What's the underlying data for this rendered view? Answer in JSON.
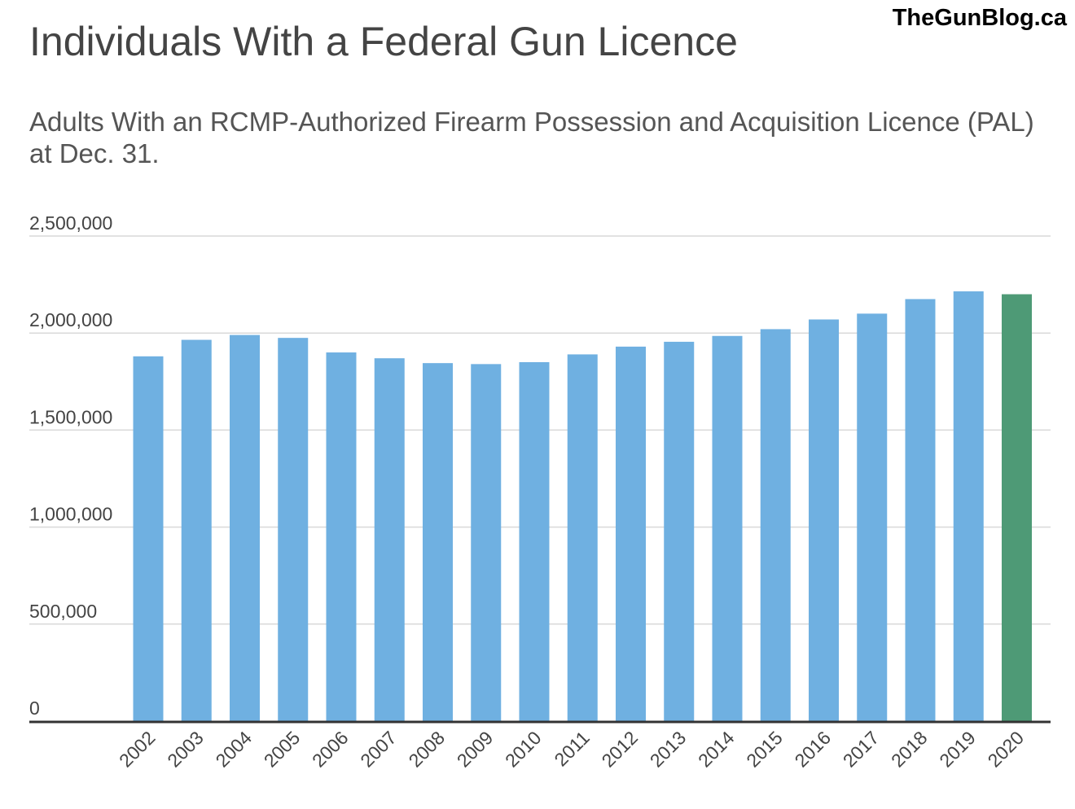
{
  "header": {
    "title": "Individuals With a Federal Gun Licence",
    "brand": "TheGunBlog.ca"
  },
  "chart_data": {
    "type": "bar",
    "title": "Individuals With a Federal Gun Licence",
    "subtitle": "Adults With an RCMP-Authorized Firearm Possession and Acquisition Licence (PAL) at Dec. 31.",
    "xlabel": "",
    "ylabel": "",
    "ylim": [
      0,
      2500000
    ],
    "y_ticks": [
      0,
      500000,
      1000000,
      1500000,
      2000000,
      2500000
    ],
    "y_tick_labels": [
      "0",
      "500,000",
      "1,000,000",
      "1,500,000",
      "2,000,000",
      "2,500,000"
    ],
    "grid": true,
    "categories": [
      "2002",
      "2003",
      "2004",
      "2005",
      "2006",
      "2007",
      "2008",
      "2009",
      "2010",
      "2011",
      "2012",
      "2013",
      "2014",
      "2015",
      "2016",
      "2017",
      "2018",
      "2019",
      "2020"
    ],
    "values": [
      1880000,
      1965000,
      1990000,
      1975000,
      1900000,
      1870000,
      1845000,
      1840000,
      1850000,
      1890000,
      1930000,
      1955000,
      1985000,
      2020000,
      2070000,
      2100000,
      2175000,
      2215000,
      2200000
    ],
    "colors": {
      "bar": "#6fb0e1",
      "highlight": "#4e9a76",
      "grid": "#d9d9d9",
      "axis": "#333333",
      "label": "#444444"
    },
    "highlight_index": 18
  }
}
